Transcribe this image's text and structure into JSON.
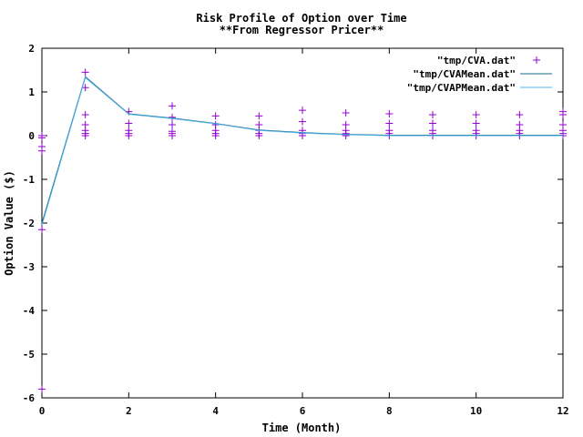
{
  "chart_data": {
    "type": "scatter",
    "title": "Risk Profile of Option over Time",
    "subtitle": "**From Regressor Pricer**",
    "xlabel": "Time (Month)",
    "ylabel": "Option Value ($)",
    "xlim": [
      0,
      12
    ],
    "ylim": [
      -6,
      2
    ],
    "xticks": [
      "0",
      "2",
      "4",
      "6",
      "8",
      "10",
      "12"
    ],
    "yticks": [
      "-6",
      "-5",
      "-4",
      "-3",
      "-2",
      "-1",
      "0",
      "1",
      "2"
    ],
    "grid": false,
    "legend_position": "top-right",
    "series": [
      {
        "name": "\"tmp/CVA.dat\"",
        "kind": "points",
        "marker": "plus",
        "color": "#9400d3",
        "points": [
          [
            0,
            0.0
          ],
          [
            0,
            -0.05
          ],
          [
            0,
            -0.25
          ],
          [
            0,
            -0.35
          ],
          [
            0,
            -2.15
          ],
          [
            0,
            -5.8
          ],
          [
            1,
            1.45
          ],
          [
            1,
            1.1
          ],
          [
            1,
            0.48
          ],
          [
            1,
            0.25
          ],
          [
            1,
            0.12
          ],
          [
            1,
            0.05
          ],
          [
            1,
            0.0
          ],
          [
            2,
            0.55
          ],
          [
            2,
            0.28
          ],
          [
            2,
            0.12
          ],
          [
            2,
            0.05
          ],
          [
            2,
            0.0
          ],
          [
            3,
            0.68
          ],
          [
            3,
            0.42
          ],
          [
            3,
            0.25
          ],
          [
            3,
            0.1
          ],
          [
            3,
            0.05
          ],
          [
            3,
            0.0
          ],
          [
            4,
            0.45
          ],
          [
            4,
            0.25
          ],
          [
            4,
            0.12
          ],
          [
            4,
            0.05
          ],
          [
            4,
            0.0
          ],
          [
            5,
            0.45
          ],
          [
            5,
            0.25
          ],
          [
            5,
            0.12
          ],
          [
            5,
            0.05
          ],
          [
            5,
            0.0
          ],
          [
            6,
            0.58
          ],
          [
            6,
            0.32
          ],
          [
            6,
            0.12
          ],
          [
            6,
            0.05
          ],
          [
            6,
            0.0
          ],
          [
            7,
            0.52
          ],
          [
            7,
            0.25
          ],
          [
            7,
            0.12
          ],
          [
            7,
            0.05
          ],
          [
            7,
            0.0
          ],
          [
            8,
            0.5
          ],
          [
            8,
            0.28
          ],
          [
            8,
            0.12
          ],
          [
            8,
            0.05
          ],
          [
            8,
            0.0
          ],
          [
            9,
            0.48
          ],
          [
            9,
            0.28
          ],
          [
            9,
            0.12
          ],
          [
            9,
            0.05
          ],
          [
            9,
            0.0
          ],
          [
            10,
            0.48
          ],
          [
            10,
            0.28
          ],
          [
            10,
            0.12
          ],
          [
            10,
            0.05
          ],
          [
            10,
            0.0
          ],
          [
            11,
            0.48
          ],
          [
            11,
            0.25
          ],
          [
            11,
            0.12
          ],
          [
            11,
            0.05
          ],
          [
            11,
            0.0
          ],
          [
            12,
            0.55
          ],
          [
            12,
            0.48
          ],
          [
            12,
            0.25
          ],
          [
            12,
            0.12
          ],
          [
            12,
            0.05
          ],
          [
            12,
            0.0
          ]
        ]
      },
      {
        "name": "\"tmp/CVAMean.dat\"",
        "kind": "line",
        "color": "#11698a",
        "x": [
          0,
          1,
          2,
          3,
          4,
          5,
          6,
          7,
          8,
          9,
          10,
          11,
          12
        ],
        "y": [
          -2.0,
          1.35,
          0.5,
          0.4,
          0.28,
          0.13,
          0.07,
          0.03,
          0.01,
          0.01,
          0.01,
          0.01,
          0.01
        ]
      },
      {
        "name": "\"tmp/CVAPMean.dat\"",
        "kind": "line",
        "color": "#56b4e9",
        "x": [
          0,
          1,
          2,
          3,
          4,
          5,
          6,
          7,
          8,
          9,
          10,
          11,
          12
        ],
        "y": [
          -2.05,
          1.33,
          0.49,
          0.39,
          0.27,
          0.12,
          0.06,
          0.02,
          0.0,
          0.0,
          0.0,
          0.0,
          0.0
        ]
      }
    ]
  }
}
